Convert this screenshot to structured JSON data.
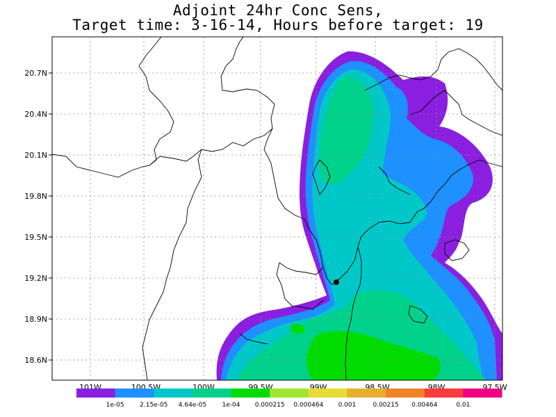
{
  "title_line1": "Adjoint 24hr Conc Sens,",
  "title_line2": "Target time: 3-16-14, Hours before target: 19",
  "lat_labels": [
    "20.7N",
    "20.4N",
    "20.1N",
    "19.8N",
    "19.5N",
    "19.2N",
    "18.9N",
    "18.6N"
  ],
  "lon_labels": [
    "101W",
    "100.5W",
    "100W",
    "99.5W",
    "99W",
    "98.5W",
    "98W",
    "97.5W"
  ],
  "colorbar": {
    "colors": [
      "#8a1fe0",
      "#1e90ff",
      "#00c8c8",
      "#00d28c",
      "#00dc00",
      "#a0e632",
      "#e6dc32",
      "#e6af2d",
      "#f08228",
      "#fa3c3c",
      "#f00082"
    ],
    "labels": [
      "1e-05",
      "2.15e-05",
      "4.64e-05",
      "1e-04",
      "0.000215",
      "0.000464",
      "0.001",
      "0.00215",
      "0.00464",
      "0.01"
    ]
  },
  "target_marker": "target-point-icon"
}
